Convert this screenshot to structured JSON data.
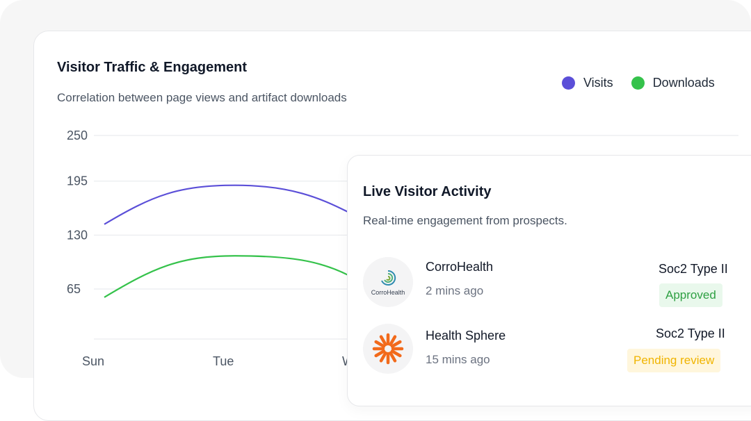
{
  "card": {
    "title": "Visitor Traffic & Engagement",
    "subtitle": "Correlation between page views and artifact downloads"
  },
  "legend": [
    {
      "label": "Visits",
      "color": "#5b4fd8"
    },
    {
      "label": "Downloads",
      "color": "#35c24b"
    }
  ],
  "chart_data": {
    "type": "line",
    "categories": [
      "Sun",
      "Tue",
      "W"
    ],
    "y_ticks": [
      "250",
      "195",
      "130",
      "65"
    ],
    "ylim": [
      0,
      250
    ],
    "series": [
      {
        "name": "Visits",
        "color": "#5b4fd8",
        "values": [
          143,
          190,
          158
        ]
      },
      {
        "name": "Downloads",
        "color": "#35c24b",
        "values": [
          55,
          105,
          82
        ]
      }
    ],
    "grid": true,
    "legend_position": "top-right"
  },
  "activity": {
    "title": "Live Visitor Activity",
    "subtitle": "Real-time engagement from prospects.",
    "items": [
      {
        "name": "CorroHealth",
        "avatar_text": "CorroHealth",
        "avatar_icon": "corrohealth-logo-icon",
        "time": "2 mins ago",
        "document": "Soc2 Type II",
        "status": "Approved"
      },
      {
        "name": "Health Sphere",
        "avatar_text": "",
        "avatar_icon": "health-sphere-logo-icon",
        "time": "15 mins ago",
        "document": "Soc2 Type II",
        "status": "Pending review"
      }
    ]
  }
}
